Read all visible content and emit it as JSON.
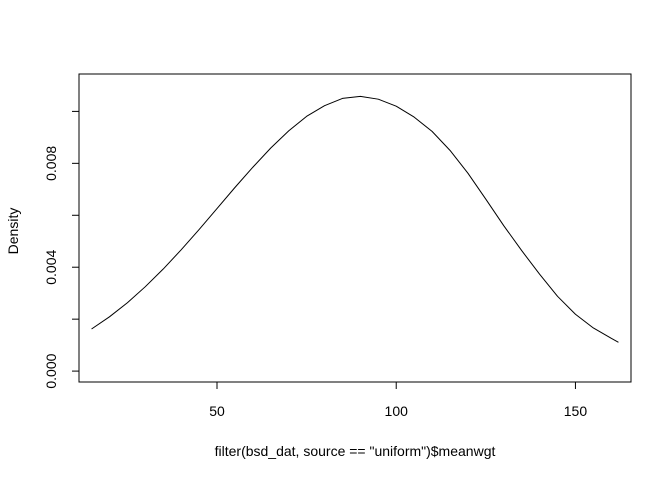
{
  "chart_data": {
    "type": "line",
    "title": "",
    "xlabel": "filter(bsd_dat, source == \"uniform\")$meanwgt",
    "ylabel": "Density",
    "x_ticks": [
      50,
      100,
      150
    ],
    "y_ticks": [
      0.0,
      0.002,
      0.004,
      0.006,
      0.008,
      0.01
    ],
    "y_tick_labels": [
      "0.000",
      "0.004",
      "0.008"
    ],
    "xlim": [
      11.5,
      165.5
    ],
    "ylim": [
      -0.00042,
      0.01144
    ],
    "grid": false,
    "series": [
      {
        "color": "#000000",
        "x": [
          15,
          20,
          25,
          30,
          35,
          40,
          45,
          50,
          55,
          60,
          65,
          70,
          75,
          80,
          85,
          90,
          95,
          100,
          105,
          110,
          115,
          120,
          125,
          130,
          135,
          140,
          145,
          150,
          155,
          160,
          162
        ],
        "y": [
          0.00162,
          0.00209,
          0.00263,
          0.00325,
          0.00393,
          0.00467,
          0.00545,
          0.00626,
          0.00707,
          0.00785,
          0.00859,
          0.00925,
          0.00981,
          0.01022,
          0.0105,
          0.01058,
          0.01047,
          0.0102,
          0.00978,
          0.00923,
          0.0085,
          0.00762,
          0.00662,
          0.0056,
          0.00464,
          0.00373,
          0.00288,
          0.00219,
          0.00166,
          0.00126,
          0.00111
        ]
      }
    ]
  }
}
